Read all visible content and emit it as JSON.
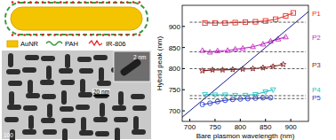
{
  "chart_data": {
    "type": "scatter",
    "x_label": "Bare plasmon wavelength (nm)",
    "y_label": "Hybrid peak (nm)",
    "xlim": [
      685,
      935
    ],
    "ylim": [
      675,
      950
    ],
    "xticks": [
      700,
      750,
      800,
      850,
      900
    ],
    "yticks": [
      700,
      750,
      800,
      850,
      900
    ],
    "grid": false,
    "series": [
      {
        "name": "P1",
        "color": "#e8322a",
        "marker": "square",
        "line_style": "solid",
        "x": [
          730,
          750,
          770,
          790,
          810,
          830,
          850,
          870,
          890,
          905
        ],
        "values": [
          908,
          908,
          908,
          909,
          910,
          911,
          913,
          917,
          925,
          932
        ]
      },
      {
        "name": "P2",
        "color": "#c22bc2",
        "marker": "triangle",
        "line_style": "solid",
        "x": [
          725,
          740,
          755,
          775,
          790,
          805,
          825,
          845,
          860,
          875,
          890
        ],
        "values": [
          843,
          839,
          842,
          843,
          846,
          848,
          852,
          858,
          865,
          870,
          875
        ]
      },
      {
        "name": "P3",
        "color": "#8b1a1a",
        "marker": "star",
        "line_style": "solid",
        "x": [
          725,
          745,
          765,
          785,
          805,
          825,
          845,
          865,
          885
        ],
        "values": [
          795,
          797,
          797,
          798,
          799,
          800,
          802,
          805,
          810
        ]
      },
      {
        "name": "P4",
        "color": "#2ac3c8",
        "marker": "triangle-down",
        "line_style": "solid",
        "x": [
          730,
          750,
          770,
          790,
          810,
          830,
          850,
          865
        ],
        "values": [
          739,
          738,
          738,
          737,
          737,
          739,
          745,
          750
        ]
      },
      {
        "name": "P5",
        "color": "#2a40d0",
        "marker": "circle",
        "line_style": "solid",
        "x": [
          725,
          740,
          755,
          770,
          785,
          800,
          815,
          830,
          845,
          860
        ],
        "values": [
          715,
          718,
          722,
          725,
          727,
          728,
          729,
          730,
          731,
          731
        ]
      },
      {
        "type": "line",
        "color": "#1a1a8c",
        "line_style": "solid",
        "marker": "none",
        "x": [
          685,
          935
        ],
        "values": [
          685,
          935
        ]
      },
      {
        "type": "line",
        "color": "#555555",
        "line_style": "dashed",
        "marker": "none",
        "x": [
          700,
          930
        ],
        "values": [
          910,
          910
        ]
      },
      {
        "type": "line",
        "color": "#555555",
        "line_style": "dashed",
        "marker": "none",
        "x": [
          700,
          930
        ],
        "values": [
          840,
          840
        ]
      },
      {
        "type": "line",
        "color": "#555555",
        "line_style": "dashed",
        "marker": "none",
        "x": [
          700,
          930
        ],
        "values": [
          800,
          800
        ]
      },
      {
        "type": "line",
        "color": "#555555",
        "line_style": "dashed",
        "marker": "none",
        "x": [
          700,
          930
        ],
        "values": [
          736,
          736
        ]
      },
      {
        "type": "line",
        "color": "#555555",
        "line_style": "dashed",
        "marker": "none",
        "x": [
          700,
          930
        ],
        "values": [
          729,
          729
        ]
      }
    ]
  },
  "schematic": {
    "labels": [
      "AuNR",
      "PAH",
      "IR-806"
    ]
  },
  "micrograph": {
    "scale_bar": "20 nm",
    "inset_scale_bar": "2 nm",
    "corner_label": "100"
  }
}
